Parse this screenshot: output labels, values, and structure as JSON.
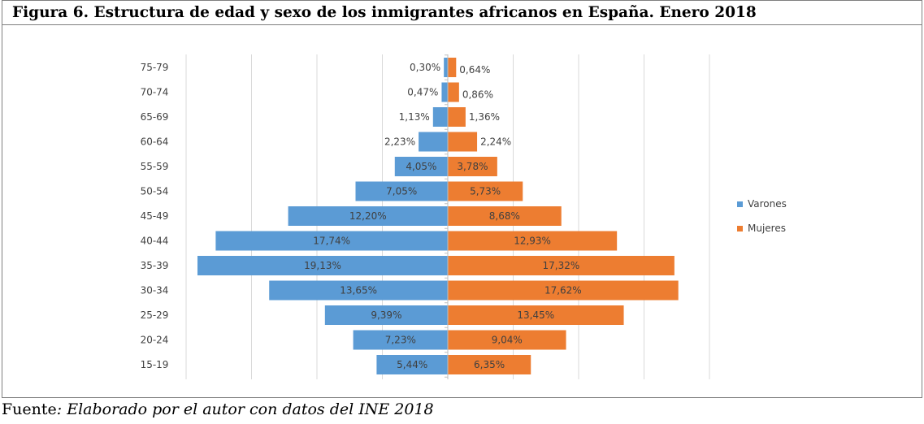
{
  "figure": {
    "title": "Figura 6. Estructura de edad y sexo de los inmigrantes africanos en España. Enero 2018",
    "source_prefix": "Fuente",
    "source_text": ": Elaborado por el autor con datos del INE 2018"
  },
  "chart_data": {
    "type": "bar",
    "orientation": "horizontal",
    "subtype": "population-pyramid",
    "categories": [
      "75-79",
      "70-74",
      "65-69",
      "60-64",
      "55-59",
      "50-54",
      "45-49",
      "40-44",
      "35-39",
      "30-34",
      "25-29",
      "20-24",
      "15-19"
    ],
    "series": [
      {
        "name": "Varones",
        "color": "#5b9bd5",
        "values": [
          0.3,
          0.47,
          1.13,
          2.23,
          4.05,
          7.05,
          12.2,
          17.74,
          19.13,
          13.65,
          9.39,
          7.23,
          5.44
        ],
        "labels": [
          "0,30%",
          "0,47%",
          "1,13%",
          "2,23%",
          "4,05%",
          "7,05%",
          "12,20%",
          "17,74%",
          "19,13%",
          "13,65%",
          "9,39%",
          "7,23%",
          "5,44%"
        ]
      },
      {
        "name": "Mujeres",
        "color": "#ed7d31",
        "values": [
          0.64,
          0.86,
          1.36,
          2.24,
          3.78,
          5.73,
          8.68,
          12.93,
          17.32,
          17.62,
          13.45,
          9.04,
          6.35
        ],
        "labels": [
          "0,64%",
          "0,86%",
          "1,36%",
          "2,24%",
          "3,78%",
          "5,73%",
          "8,68%",
          "12,93%",
          "17,32%",
          "17,62%",
          "13,45%",
          "9,04%",
          "6,35%"
        ]
      }
    ],
    "xlim": [
      -20,
      20
    ],
    "gridlines_vertical": true,
    "axis_labels_shown": false,
    "legend_position": "right"
  }
}
